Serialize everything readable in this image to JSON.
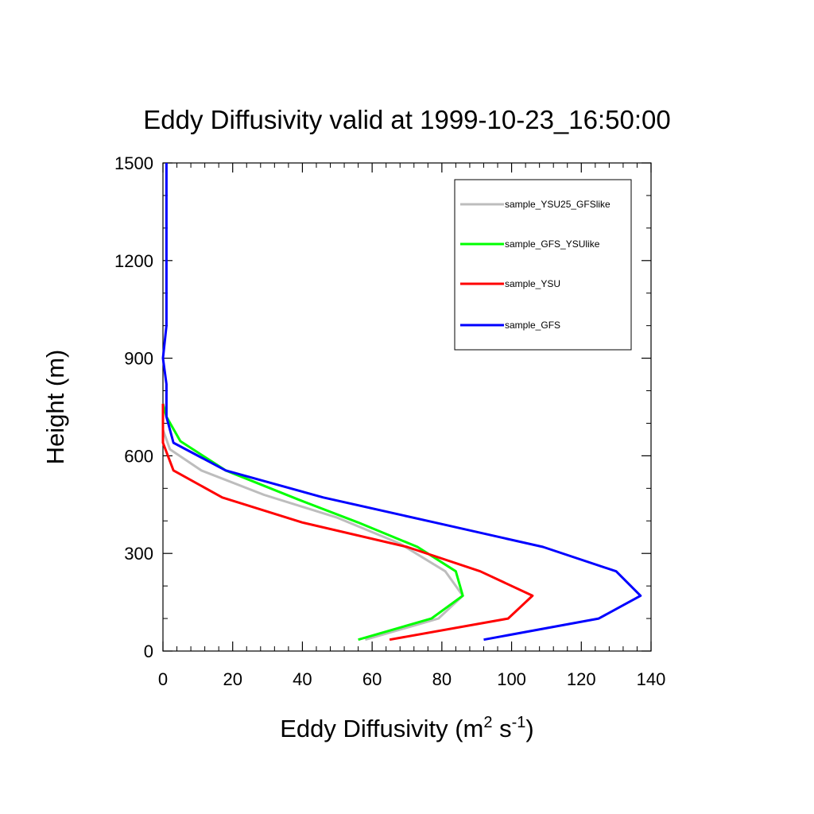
{
  "chart_data": {
    "type": "line",
    "title": "Eddy Diffusivity valid at 1999-10-23_16:50:00",
    "xlabel": {
      "base": "Eddy Diffusivity (m",
      "sup1": "2",
      "mid": " s",
      "sup2": "-1",
      "end": ")"
    },
    "ylabel": "Height (m)",
    "xlim": [
      0,
      140
    ],
    "ylim": [
      0,
      1500
    ],
    "xticks": [
      0,
      20,
      40,
      60,
      80,
      100,
      120,
      140
    ],
    "yticks": [
      0,
      300,
      600,
      900,
      1200,
      1500
    ],
    "xtick_labels": [
      "0",
      "20",
      "40",
      "60",
      "80",
      "100",
      "120",
      "140"
    ],
    "ytick_labels": [
      "0",
      "300",
      "600",
      "900",
      "1200",
      "1500"
    ],
    "grid": false,
    "legend": "top-right",
    "series": [
      {
        "name": "sample_YSU25_GFSlike",
        "color": "#bdbdbd",
        "points": [
          [
            58,
            35
          ],
          [
            79,
            100
          ],
          [
            86,
            170
          ],
          [
            81,
            245
          ],
          [
            68,
            330
          ],
          [
            50,
            410
          ],
          [
            29,
            480
          ],
          [
            11,
            555
          ],
          [
            2,
            620
          ],
          [
            0,
            680
          ],
          [
            0,
            720
          ],
          [
            0,
            760
          ]
        ]
      },
      {
        "name": "sample_GFS_YSUlike",
        "color": "#00ff00",
        "points": [
          [
            56,
            35
          ],
          [
            77,
            100
          ],
          [
            86,
            170
          ],
          [
            84,
            245
          ],
          [
            73,
            320
          ],
          [
            56,
            395
          ],
          [
            39,
            465
          ],
          [
            18,
            555
          ],
          [
            5,
            645
          ],
          [
            1,
            720
          ],
          [
            0,
            760
          ]
        ]
      },
      {
        "name": "sample_YSU",
        "color": "#ff0000",
        "points": [
          [
            65,
            35
          ],
          [
            99,
            100
          ],
          [
            106,
            170
          ],
          [
            91,
            245
          ],
          [
            70,
            320
          ],
          [
            40,
            395
          ],
          [
            17,
            472
          ],
          [
            3,
            555
          ],
          [
            0,
            640
          ],
          [
            0,
            720
          ],
          [
            0,
            760
          ]
        ]
      },
      {
        "name": "sample_GFS",
        "color": "#0000ff",
        "points": [
          [
            92,
            35
          ],
          [
            125,
            100
          ],
          [
            137,
            170
          ],
          [
            130,
            245
          ],
          [
            109,
            320
          ],
          [
            78,
            395
          ],
          [
            46,
            472
          ],
          [
            18,
            555
          ],
          [
            3,
            640
          ],
          [
            1,
            720
          ],
          [
            1,
            820
          ],
          [
            0,
            900
          ],
          [
            1,
            1000
          ],
          [
            1,
            1100
          ],
          [
            1,
            1200
          ],
          [
            1,
            1300
          ],
          [
            1,
            1400
          ],
          [
            1,
            1500
          ]
        ]
      }
    ]
  }
}
